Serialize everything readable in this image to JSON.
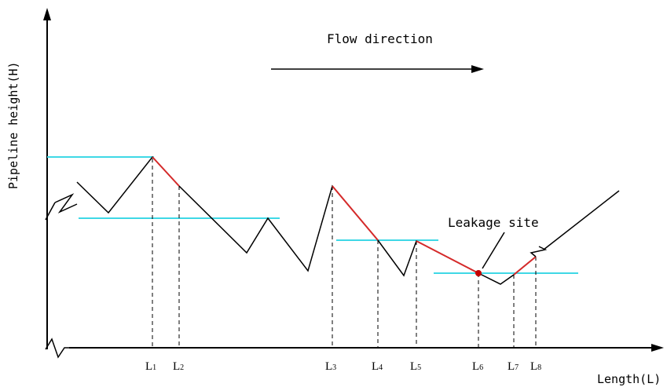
{
  "title_text": "Flow direction",
  "y_axis_label": "Pipeline height(H)",
  "x_axis_label": "Length(L)",
  "leakage_label": "Leakage site",
  "markers": [
    {
      "main": "L",
      "sub": "1"
    },
    {
      "main": "L",
      "sub": "2"
    },
    {
      "main": "L",
      "sub": "3"
    },
    {
      "main": "L",
      "sub": "4"
    },
    {
      "main": "L",
      "sub": "5"
    },
    {
      "main": "L",
      "sub": "6"
    },
    {
      "main": "L",
      "sub": "7"
    },
    {
      "main": "L",
      "sub": "8"
    }
  ],
  "colors": {
    "profile": "#000000",
    "highlight": "#d62a2a",
    "level": "#3fd8e6",
    "leak_point": "#c40000"
  }
}
